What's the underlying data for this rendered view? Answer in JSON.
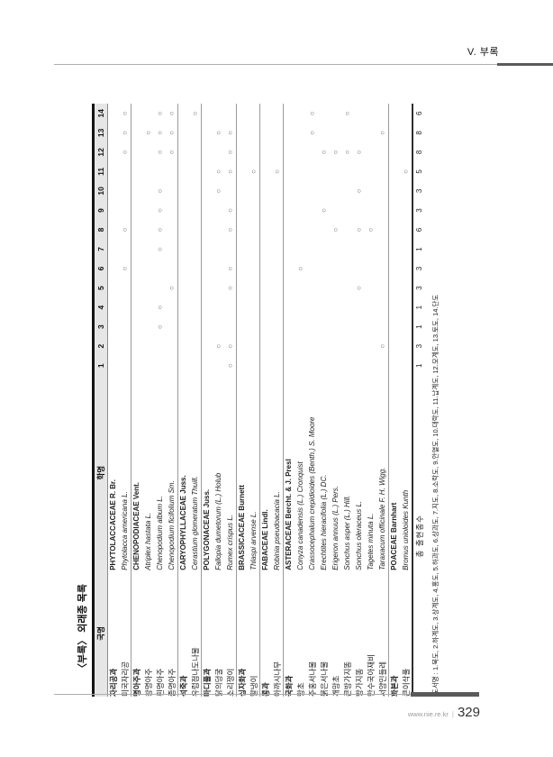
{
  "page": {
    "header": {
      "title": "V. 부록"
    },
    "footer": {
      "site": "www.nie.re.kr",
      "separator": "|",
      "page_number": "329"
    }
  },
  "appendix": {
    "title": "〈부록〉 외래종 목록",
    "table": {
      "col_korean_name": "국명",
      "col_scientific_name": "학명",
      "site_numbers": [
        "1",
        "2",
        "3",
        "4",
        "5",
        "6",
        "7",
        "8",
        "9",
        "10",
        "11",
        "12",
        "13",
        "14"
      ],
      "mark_symbol": "○",
      "rows": [
        {
          "type": "family",
          "ko": "자리공과",
          "sci": "PHYTOLACCACEAE R. Br.",
          "marks": []
        },
        {
          "type": "species",
          "ko": "미국자리공",
          "sci": "Phytolacca americana L.",
          "marks": [
            6,
            8,
            12,
            13,
            14
          ]
        },
        {
          "type": "family",
          "ko": "명아주과",
          "sci": "CHENOPODIACEAE Vent.",
          "marks": []
        },
        {
          "type": "species",
          "ko": "창명아주",
          "sci": "Atriplex hastata L.",
          "marks": [
            13
          ]
        },
        {
          "type": "species",
          "ko": "흰명아주",
          "sci": "Chenopodium album L.",
          "marks": [
            3,
            4,
            7,
            8,
            9,
            10,
            12,
            13,
            14
          ]
        },
        {
          "type": "species",
          "ko": "좀명아주",
          "sci": "Chenopodium ficifolium Sm.",
          "marks": [
            5,
            12,
            13,
            14
          ]
        },
        {
          "type": "family",
          "ko": "석죽과",
          "sci": "CARYOPHYLLACEAE Juss.",
          "marks": []
        },
        {
          "type": "species",
          "ko": "유럽점나도나물",
          "sci": "Cerastium glomeratum Thuill.",
          "marks": [
            14
          ]
        },
        {
          "type": "family",
          "ko": "마디풀과",
          "sci": "POLYGONACEAE Juss.",
          "marks": []
        },
        {
          "type": "species",
          "ko": "닭의덩굴",
          "sci": "Fallopia dumetorum (L.) Holub",
          "marks": [
            2,
            10,
            11,
            13
          ]
        },
        {
          "type": "species",
          "ko": "소리쟁이",
          "sci": "Rumex crispus L.",
          "marks": [
            1,
            2,
            5,
            6,
            8,
            9,
            11,
            12,
            13
          ]
        },
        {
          "type": "family",
          "ko": "십자화과",
          "sci": "BRASSICACEAE Burnett",
          "marks": []
        },
        {
          "type": "species",
          "ko": "말냉이",
          "sci": "Thlaspi arvense L.",
          "marks": [
            11
          ]
        },
        {
          "type": "family",
          "ko": "콩과",
          "sci": "FABACEAE Lindl.",
          "marks": []
        },
        {
          "type": "species",
          "ko": "아까시나무",
          "sci": "Robinia pseudoacacia L.",
          "marks": [
            11
          ]
        },
        {
          "type": "family",
          "ko": "국화과",
          "sci": "ASTERACEAE Bercht. & J. Presl",
          "marks": []
        },
        {
          "type": "species",
          "ko": "망초",
          "sci": "Conyza canadensis (L.) Cronquist",
          "marks": [
            6
          ]
        },
        {
          "type": "species",
          "ko": "주홍서나물",
          "sci": "Crassocephalum crepidioides (Benth.) S. Moore",
          "marks": [
            13,
            14
          ]
        },
        {
          "type": "species",
          "ko": "붉은서나물",
          "sci": "Erechtites hieracifolia (L.) DC.",
          "marks": [
            9,
            12
          ]
        },
        {
          "type": "species",
          "ko": "개망초",
          "sci": "Erigeron annuus (L.) Pers.",
          "marks": [
            8,
            12
          ]
        },
        {
          "type": "species",
          "ko": "큰방가지똥",
          "sci": "Sonchus asper (L.) Hill.",
          "marks": [
            12,
            14
          ]
        },
        {
          "type": "species",
          "ko": "방가지똥",
          "sci": "Sonchus oleraceus L.",
          "marks": [
            5,
            8,
            10,
            12
          ]
        },
        {
          "type": "species",
          "ko": "만수국아재비",
          "sci": "Tagetes minuta L.",
          "marks": [
            8
          ]
        },
        {
          "type": "species",
          "ko": "서양민들레",
          "sci": "Taraxacum officinale F. H. Wigg.",
          "marks": [
            2,
            13
          ]
        },
        {
          "type": "family",
          "ko": "화본과",
          "sci": "POACEAE Barnhart",
          "marks": []
        },
        {
          "type": "species",
          "ko": "큰이삭풀",
          "sci": "Bromus unioloides Kunth",
          "marks": [
            11
          ]
        }
      ],
      "total_row": {
        "label": "총 출현종수",
        "values": [
          1,
          3,
          1,
          1,
          3,
          3,
          1,
          6,
          3,
          3,
          5,
          8,
          8,
          6
        ]
      }
    },
    "footnote": "도서명 : 1.묵도, 2.하계도, 3.상계도, 4.홍도, 5.하과도, 6.상과도, 7.지도, 8.소락도, 9.안열도, 10.대락도, 11.납계도, 12.모계도, 13.토도, 14.단도"
  },
  "colors": {
    "rule_thin": "#adadad",
    "rule_thick": "#5a5a5a",
    "header_strip_bg": "#e6e6e6",
    "table_top_border": "#141414",
    "text": "#222222",
    "mark": "#555555"
  }
}
